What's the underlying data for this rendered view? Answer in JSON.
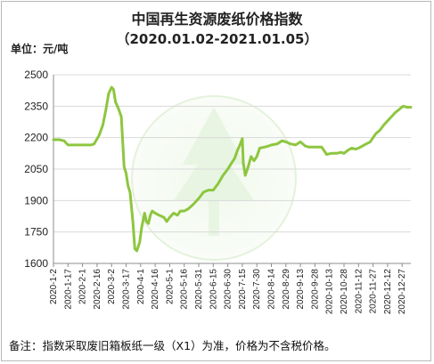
{
  "title": "中国再生资源废纸价格指数",
  "subtitle": "（2020.01.02-2021.01.05）",
  "unit_label": "单位：元/吨",
  "note": "备注：指数采取废旧箱板纸一级（X1）为准，价格为不含税价格。",
  "colors": {
    "line": "#8dc63f",
    "grid": "#d9d9d9",
    "axis": "#8c8c8c"
  },
  "chart_data": {
    "type": "line",
    "title": "中国再生资源废纸价格指数",
    "ylabel": "元/吨",
    "ylim": [
      1600,
      2500
    ],
    "yticks": [
      1600,
      1750,
      1900,
      2050,
      2200,
      2350,
      2500
    ],
    "xticks": [
      "2020-1-2",
      "2020-1-17",
      "2020-2-1",
      "2020-2-16",
      "2020-3-2",
      "2020-3-17",
      "2020-4-1",
      "2020-4-16",
      "2020-5-1",
      "2020-5-16",
      "2020-5-31",
      "2020-6-15",
      "2020-6-30",
      "2020-7-15",
      "2020-7-30",
      "2020-8-14",
      "2020-8-29",
      "2020-9-13",
      "2020-9-28",
      "2020-10-13",
      "2020-10-28",
      "2020-11-12",
      "2020-11-27",
      "2020-12-12",
      "2020-12-27"
    ],
    "grid": "horizontal",
    "series": [
      {
        "points": [
          [
            "2020-01-02",
            2190
          ],
          [
            "2020-01-08",
            2190
          ],
          [
            "2020-01-13",
            2185
          ],
          [
            "2020-01-15",
            2175
          ],
          [
            "2020-01-17",
            2165
          ],
          [
            "2020-01-24",
            2165
          ],
          [
            "2020-02-10",
            2165
          ],
          [
            "2020-02-13",
            2170
          ],
          [
            "2020-02-18",
            2210
          ],
          [
            "2020-02-22",
            2260
          ],
          [
            "2020-02-25",
            2330
          ],
          [
            "2020-02-28",
            2410
          ],
          [
            "2020-03-02",
            2440
          ],
          [
            "2020-03-04",
            2430
          ],
          [
            "2020-03-06",
            2370
          ],
          [
            "2020-03-09",
            2340
          ],
          [
            "2020-03-12",
            2300
          ],
          [
            "2020-03-15",
            2060
          ],
          [
            "2020-03-17",
            2030
          ],
          [
            "2020-03-19",
            1970
          ],
          [
            "2020-03-21",
            1940
          ],
          [
            "2020-03-24",
            1800
          ],
          [
            "2020-03-26",
            1670
          ],
          [
            "2020-03-28",
            1660
          ],
          [
            "2020-03-31",
            1700
          ],
          [
            "2020-04-02",
            1770
          ],
          [
            "2020-04-05",
            1840
          ],
          [
            "2020-04-07",
            1800
          ],
          [
            "2020-04-09",
            1790
          ],
          [
            "2020-04-11",
            1830
          ],
          [
            "2020-04-13",
            1850
          ],
          [
            "2020-04-16",
            1840
          ],
          [
            "2020-04-20",
            1830
          ],
          [
            "2020-04-25",
            1820
          ],
          [
            "2020-04-28",
            1800
          ],
          [
            "2020-05-01",
            1820
          ],
          [
            "2020-05-05",
            1840
          ],
          [
            "2020-05-09",
            1830
          ],
          [
            "2020-05-12",
            1850
          ],
          [
            "2020-05-16",
            1850
          ],
          [
            "2020-05-20",
            1860
          ],
          [
            "2020-05-25",
            1880
          ],
          [
            "2020-05-31",
            1910
          ],
          [
            "2020-06-05",
            1940
          ],
          [
            "2020-06-10",
            1950
          ],
          [
            "2020-06-15",
            1950
          ],
          [
            "2020-06-20",
            1980
          ],
          [
            "2020-06-25",
            2020
          ],
          [
            "2020-06-30",
            2050
          ],
          [
            "2020-07-04",
            2080
          ],
          [
            "2020-07-07",
            2100
          ],
          [
            "2020-07-10",
            2140
          ],
          [
            "2020-07-13",
            2170
          ],
          [
            "2020-07-15",
            2195
          ],
          [
            "2020-07-16",
            2080
          ],
          [
            "2020-07-18",
            2020
          ],
          [
            "2020-07-21",
            2060
          ],
          [
            "2020-07-24",
            2110
          ],
          [
            "2020-07-27",
            2090
          ],
          [
            "2020-07-30",
            2110
          ],
          [
            "2020-08-02",
            2150
          ],
          [
            "2020-08-07",
            2155
          ],
          [
            "2020-08-11",
            2160
          ],
          [
            "2020-08-14",
            2165
          ],
          [
            "2020-08-20",
            2170
          ],
          [
            "2020-08-25",
            2185
          ],
          [
            "2020-08-29",
            2180
          ],
          [
            "2020-09-03",
            2170
          ],
          [
            "2020-09-08",
            2165
          ],
          [
            "2020-09-13",
            2180
          ],
          [
            "2020-09-18",
            2160
          ],
          [
            "2020-09-22",
            2155
          ],
          [
            "2020-09-28",
            2155
          ],
          [
            "2020-10-05",
            2155
          ],
          [
            "2020-10-10",
            2120
          ],
          [
            "2020-10-15",
            2125
          ],
          [
            "2020-10-20",
            2125
          ],
          [
            "2020-10-25",
            2130
          ],
          [
            "2020-10-28",
            2125
          ],
          [
            "2020-11-01",
            2140
          ],
          [
            "2020-11-05",
            2150
          ],
          [
            "2020-11-09",
            2145
          ],
          [
            "2020-11-12",
            2150
          ],
          [
            "2020-11-16",
            2160
          ],
          [
            "2020-11-20",
            2170
          ],
          [
            "2020-11-24",
            2180
          ],
          [
            "2020-11-27",
            2200
          ],
          [
            "2020-11-30",
            2220
          ],
          [
            "2020-12-04",
            2235
          ],
          [
            "2020-12-08",
            2260
          ],
          [
            "2020-12-12",
            2280
          ],
          [
            "2020-12-16",
            2300
          ],
          [
            "2020-12-20",
            2320
          ],
          [
            "2020-12-24",
            2335
          ],
          [
            "2020-12-28",
            2350
          ],
          [
            "2021-01-01",
            2345
          ],
          [
            "2021-01-05",
            2345
          ]
        ]
      }
    ]
  }
}
